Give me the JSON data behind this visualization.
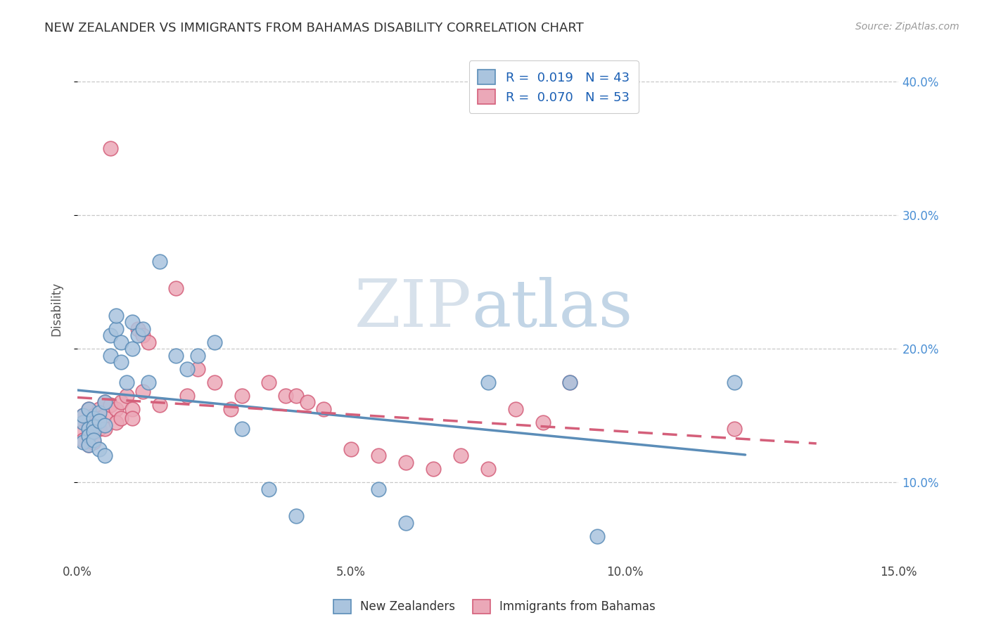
{
  "title": "NEW ZEALANDER VS IMMIGRANTS FROM BAHAMAS DISABILITY CORRELATION CHART",
  "source": "Source: ZipAtlas.com",
  "ylabel": "Disability",
  "xlim": [
    0.0,
    0.15
  ],
  "ylim": [
    0.04,
    0.42
  ],
  "yticks": [
    0.1,
    0.2,
    0.3,
    0.4
  ],
  "right_ytick_labels": [
    "10.0%",
    "20.0%",
    "30.0%",
    "40.0%"
  ],
  "xticks": [
    0.0,
    0.05,
    0.1,
    0.15
  ],
  "xtick_labels": [
    "0.0%",
    "5.0%",
    "10.0%",
    "15.0%"
  ],
  "nz_color": "#5b8db8",
  "nz_color_fill": "#aac4de",
  "bah_color": "#d45f7a",
  "bah_color_fill": "#eba8b8",
  "nz_R": 0.019,
  "nz_N": 43,
  "bah_R": 0.07,
  "bah_N": 53,
  "nz_line_end_x": 0.122,
  "bah_line_end_x": 0.135,
  "nz_scatter_x": [
    0.001,
    0.001,
    0.001,
    0.002,
    0.002,
    0.002,
    0.002,
    0.003,
    0.003,
    0.003,
    0.003,
    0.004,
    0.004,
    0.004,
    0.005,
    0.005,
    0.005,
    0.006,
    0.006,
    0.007,
    0.007,
    0.008,
    0.008,
    0.009,
    0.01,
    0.01,
    0.011,
    0.012,
    0.013,
    0.015,
    0.018,
    0.02,
    0.022,
    0.025,
    0.03,
    0.035,
    0.04,
    0.055,
    0.06,
    0.075,
    0.09,
    0.095,
    0.12
  ],
  "nz_scatter_y": [
    0.145,
    0.15,
    0.13,
    0.155,
    0.14,
    0.135,
    0.128,
    0.148,
    0.142,
    0.138,
    0.132,
    0.152,
    0.146,
    0.125,
    0.16,
    0.143,
    0.12,
    0.21,
    0.195,
    0.215,
    0.225,
    0.205,
    0.19,
    0.175,
    0.22,
    0.2,
    0.21,
    0.215,
    0.175,
    0.265,
    0.195,
    0.185,
    0.195,
    0.205,
    0.14,
    0.095,
    0.075,
    0.095,
    0.07,
    0.175,
    0.175,
    0.06,
    0.175
  ],
  "bah_scatter_x": [
    0.001,
    0.001,
    0.001,
    0.001,
    0.002,
    0.002,
    0.002,
    0.002,
    0.003,
    0.003,
    0.003,
    0.003,
    0.004,
    0.004,
    0.004,
    0.005,
    0.005,
    0.005,
    0.006,
    0.006,
    0.007,
    0.007,
    0.008,
    0.008,
    0.009,
    0.01,
    0.01,
    0.011,
    0.012,
    0.012,
    0.013,
    0.015,
    0.018,
    0.02,
    0.022,
    0.025,
    0.028,
    0.03,
    0.035,
    0.038,
    0.04,
    0.042,
    0.045,
    0.05,
    0.055,
    0.06,
    0.065,
    0.07,
    0.075,
    0.08,
    0.085,
    0.09,
    0.12
  ],
  "bah_scatter_y": [
    0.15,
    0.145,
    0.138,
    0.132,
    0.155,
    0.142,
    0.135,
    0.128,
    0.15,
    0.143,
    0.138,
    0.13,
    0.155,
    0.148,
    0.14,
    0.16,
    0.15,
    0.14,
    0.35,
    0.158,
    0.155,
    0.145,
    0.16,
    0.148,
    0.165,
    0.155,
    0.148,
    0.215,
    0.21,
    0.168,
    0.205,
    0.158,
    0.245,
    0.165,
    0.185,
    0.175,
    0.155,
    0.165,
    0.175,
    0.165,
    0.165,
    0.16,
    0.155,
    0.125,
    0.12,
    0.115,
    0.11,
    0.12,
    0.11,
    0.155,
    0.145,
    0.175,
    0.14
  ],
  "watermark_zip": "ZIP",
  "watermark_atlas": "atlas"
}
